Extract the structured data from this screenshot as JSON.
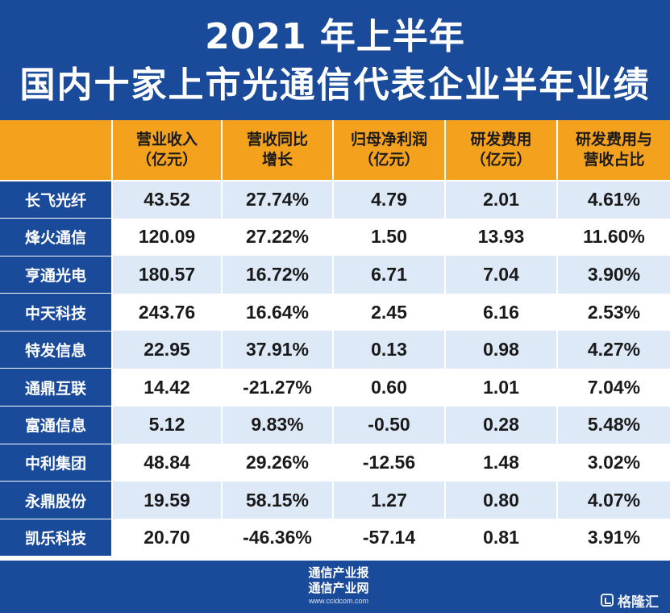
{
  "header": {
    "title_line1": "2021 年上半年",
    "title_line2": "国内十家上市光通信代表企业半年业绩"
  },
  "table": {
    "columns": [
      [
        "营业收入",
        "（亿元）"
      ],
      [
        "营收同比",
        "增长"
      ],
      [
        "归母净利润",
        "（亿元）"
      ],
      [
        "研发费用",
        "（亿元）"
      ],
      [
        "研发费用与",
        "营收占比"
      ]
    ],
    "rows": [
      {
        "name": "长飞光纤",
        "values": [
          "43.52",
          "27.74%",
          "4.79",
          "2.01",
          "4.61%"
        ]
      },
      {
        "name": "烽火通信",
        "values": [
          "120.09",
          "27.22%",
          "1.50",
          "13.93",
          "11.60%"
        ]
      },
      {
        "name": "亨通光电",
        "values": [
          "180.57",
          "16.72%",
          "6.71",
          "7.04",
          "3.90%"
        ]
      },
      {
        "name": "中天科技",
        "values": [
          "243.76",
          "16.64%",
          "2.45",
          "6.16",
          "2.53%"
        ]
      },
      {
        "name": "特发信息",
        "values": [
          "22.95",
          "37.91%",
          "0.13",
          "0.98",
          "4.27%"
        ]
      },
      {
        "name": "通鼎互联",
        "values": [
          "14.42",
          "-21.27%",
          "0.60",
          "1.01",
          "7.04%"
        ]
      },
      {
        "name": "富通信息",
        "values": [
          "5.12",
          "9.83%",
          "-0.50",
          "0.28",
          "5.48%"
        ]
      },
      {
        "name": "中利集团",
        "values": [
          "48.84",
          "29.26%",
          "-12.56",
          "1.48",
          "3.02%"
        ]
      },
      {
        "name": "永鼎股份",
        "values": [
          "19.59",
          "58.15%",
          "1.27",
          "0.80",
          "4.07%"
        ]
      },
      {
        "name": "凯乐科技",
        "values": [
          "20.70",
          "-46.36%",
          "-57.14",
          "0.81",
          "3.91%"
        ]
      }
    ]
  },
  "footer": {
    "logo_line1": "通信产业报",
    "logo_line2": "通信产业网",
    "logo_url": "www.ccidcom.com",
    "watermark": "格隆汇"
  },
  "colors": {
    "header_blue": "#1a4a9a",
    "header_orange": "#f4a21d",
    "row_light_blue": "#dde9f6"
  }
}
